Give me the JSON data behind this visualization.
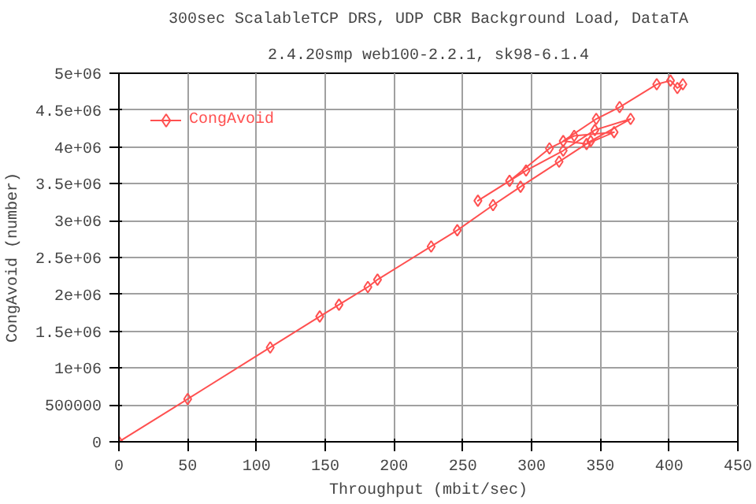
{
  "chart_data": {
    "type": "line",
    "title": "300sec ScalableTCP DRS, UDP CBR Background Load, DataTA",
    "subtitle": "2.4.20smp web100-2.2.1, sk98-6.1.4",
    "xlabel": "Throughput (mbit/sec)",
    "ylabel": "CongAvoid (number)",
    "xlim": [
      0,
      450
    ],
    "ylim": [
      0,
      5000000
    ],
    "xticks": [
      0,
      50,
      100,
      150,
      200,
      250,
      300,
      350,
      400,
      450
    ],
    "yticks": [
      0,
      500000,
      {
        "value": 1000000,
        "label": "1e+06"
      },
      {
        "value": 1500000,
        "label": "1.5e+06"
      },
      {
        "value": 2000000,
        "label": "2e+06"
      },
      {
        "value": 2500000,
        "label": "2.5e+06"
      },
      {
        "value": 3000000,
        "label": "3e+06"
      },
      {
        "value": 3500000,
        "label": "3.5e+06"
      },
      {
        "value": 4000000,
        "label": "4e+06"
      },
      {
        "value": 4500000,
        "label": "4.5e+06"
      },
      {
        "value": 5000000,
        "label": "5e+06"
      }
    ],
    "grid": true,
    "legend": "top left",
    "marker": "diamond",
    "line_style": "solid",
    "series": [
      {
        "name": "CongAvoid",
        "color": "#ff5050",
        "x": [
          0,
          50,
          110,
          146,
          160,
          181,
          188,
          227,
          246,
          272,
          292,
          320,
          343,
          372,
          346,
          323,
          296,
          261,
          284,
          313,
          331,
          360,
          340,
          323,
          347,
          364,
          391,
          401,
          406,
          410
        ],
        "values": [
          0,
          580000,
          1280000,
          1700000,
          1860000,
          2100000,
          2200000,
          2650000,
          2870000,
          3210000,
          3460000,
          3800000,
          4080000,
          4380000,
          4230000,
          3950000,
          3680000,
          3270000,
          3540000,
          3980000,
          4150000,
          4200000,
          4040000,
          4080000,
          4380000,
          4540000,
          4850000,
          4900000,
          4800000,
          4850000
        ]
      }
    ]
  }
}
